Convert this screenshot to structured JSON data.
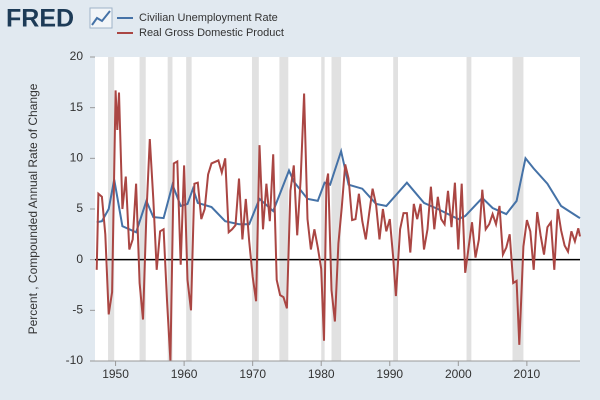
{
  "chart_data": {
    "type": "line",
    "logo": "FRED",
    "ylabel": "Percent , Compounded Annual Rate of Change",
    "xlim": [
      1947,
      2017.75
    ],
    "ylim": [
      -10,
      20
    ],
    "xticks": [
      1950,
      1960,
      1970,
      1980,
      1990,
      2000,
      2010
    ],
    "yticks": [
      -10,
      -5,
      0,
      5,
      10,
      15,
      20
    ],
    "grid": false,
    "zero_line": true,
    "recession_color": "#e1e1e1",
    "recessions": [
      [
        1948.9,
        1949.8
      ],
      [
        1953.5,
        1954.4
      ],
      [
        1957.6,
        1958.3
      ],
      [
        1960.3,
        1961.1
      ],
      [
        1969.9,
        1970.9
      ],
      [
        1973.9,
        1975.2
      ],
      [
        1980.0,
        1980.5
      ],
      [
        1981.5,
        1982.9
      ],
      [
        1990.5,
        1991.2
      ],
      [
        2001.2,
        2001.9
      ],
      [
        2007.9,
        2009.5
      ]
    ],
    "series": [
      {
        "name": "Civilian Unemployment Rate",
        "color": "#4572a7",
        "x": [
          1947.25,
          1948,
          1949,
          1949.8,
          1951,
          1953,
          1954.5,
          1955.5,
          1957,
          1958.3,
          1959.5,
          1960.5,
          1961.3,
          1962,
          1964,
          1966,
          1968,
          1969.5,
          1971,
          1973,
          1975.3,
          1976,
          1978,
          1979.5,
          1980.5,
          1981.3,
          1982.9,
          1984,
          1986,
          1988,
          1989.5,
          1992.5,
          1995,
          1997,
          2000,
          2001,
          2003.5,
          2005,
          2007,
          2008.5,
          2009.8,
          2011,
          2013,
          2015,
          2017.5,
          2017.75
        ],
        "values": [
          3.7,
          3.8,
          5.0,
          7.9,
          3.3,
          2.7,
          5.8,
          4.2,
          4.1,
          7.4,
          5.3,
          5.5,
          7.0,
          5.6,
          5.2,
          3.8,
          3.5,
          3.5,
          6.0,
          4.8,
          8.8,
          7.7,
          6.0,
          5.8,
          7.6,
          7.4,
          10.7,
          7.4,
          7.0,
          5.5,
          5.3,
          7.6,
          5.6,
          5.0,
          4.0,
          4.3,
          6.1,
          5.1,
          4.5,
          5.8,
          10.0,
          9.0,
          7.5,
          5.3,
          4.2,
          4.1
        ]
      },
      {
        "name": "Real Gross Domestic Product",
        "color": "#aa4643",
        "x": [
          1947.25,
          1947.5,
          1948,
          1948.5,
          1949,
          1949.5,
          1950,
          1950.25,
          1950.5,
          1951,
          1951.5,
          1952,
          1952.5,
          1953,
          1953.5,
          1954,
          1954.5,
          1955,
          1955.5,
          1956,
          1956.5,
          1957,
          1957.5,
          1958,
          1958.5,
          1959,
          1959.5,
          1960,
          1960.5,
          1961,
          1961.5,
          1962,
          1962.5,
          1963,
          1963.5,
          1964,
          1965,
          1965.5,
          1966,
          1966.5,
          1967,
          1967.5,
          1968,
          1968.5,
          1969,
          1969.5,
          1970,
          1970.5,
          1971,
          1971.5,
          1972,
          1972.5,
          1973,
          1973.5,
          1974,
          1974.5,
          1975,
          1975.5,
          1976,
          1976.5,
          1977,
          1977.5,
          1978,
          1978.5,
          1979,
          1979.5,
          1980,
          1980.4,
          1980.75,
          1981,
          1981.5,
          1982,
          1982.5,
          1983,
          1983.5,
          1984,
          1984.5,
          1985,
          1985.5,
          1986,
          1986.5,
          1987,
          1987.5,
          1988,
          1988.5,
          1989,
          1989.5,
          1990,
          1990.5,
          1990.9,
          1991.5,
          1992,
          1992.5,
          1993,
          1993.5,
          1994,
          1994.5,
          1995,
          1995.5,
          1996,
          1996.5,
          1997,
          1997.5,
          1998,
          1998.5,
          1999,
          1999.5,
          2000,
          2000.5,
          2001,
          2001.5,
          2002,
          2002.5,
          2003,
          2003.5,
          2004,
          2004.5,
          2005,
          2005.5,
          2006,
          2006.5,
          2007,
          2007.5,
          2008,
          2008.5,
          2008.9,
          2009.5,
          2010,
          2010.5,
          2011,
          2011.5,
          2012,
          2012.5,
          2013,
          2013.5,
          2014,
          2014.5,
          2015,
          2015.5,
          2016,
          2016.5,
          2017,
          2017.5,
          2017.75
        ],
        "values": [
          -1,
          6.5,
          6.2,
          2.5,
          -5.4,
          -3.2,
          16.7,
          12.8,
          16.5,
          5,
          8.2,
          1,
          2,
          7.5,
          -2.3,
          -5.9,
          4.5,
          11.9,
          6,
          -1,
          2.8,
          3,
          -4,
          -10,
          9.5,
          9.7,
          -0.5,
          9.3,
          -2,
          -5,
          7.5,
          7.6,
          4,
          5,
          8.4,
          9.5,
          9.8,
          8.6,
          10,
          2.7,
          3,
          3.4,
          8,
          2,
          6,
          1.8,
          -1.7,
          -4.1,
          11.3,
          3,
          7.5,
          3.8,
          10.4,
          -2,
          -3.5,
          -3.7,
          -4.8,
          6.8,
          9.3,
          2.4,
          8,
          16.4,
          4,
          1,
          3,
          1.2,
          -0.9,
          -8,
          7.6,
          8.5,
          -3,
          -6.1,
          1.6,
          5.2,
          9.4,
          8,
          3.9,
          4,
          6.5,
          3.8,
          2,
          4.6,
          7,
          5.4,
          2,
          5,
          2.8,
          4,
          0.2,
          -3.6,
          3,
          4.6,
          4.6,
          0.7,
          5.5,
          4,
          5.5,
          1,
          3,
          7.2,
          3,
          6.2,
          4,
          3.5,
          6.8,
          3.2,
          7.6,
          1,
          7.5,
          -1.3,
          1.2,
          3.7,
          0.2,
          2,
          6.9,
          3,
          3.5,
          4.5,
          3.5,
          5.3,
          0.5,
          1.2,
          2.5,
          -2.3,
          -2.1,
          -8.4,
          1.3,
          3.9,
          2.8,
          -1,
          4.7,
          2.4,
          0.5,
          3.2,
          3.7,
          -1,
          5,
          2.9,
          1.4,
          0.8,
          2.8,
          1.8,
          3.1,
          2.3
        ]
      }
    ]
  }
}
